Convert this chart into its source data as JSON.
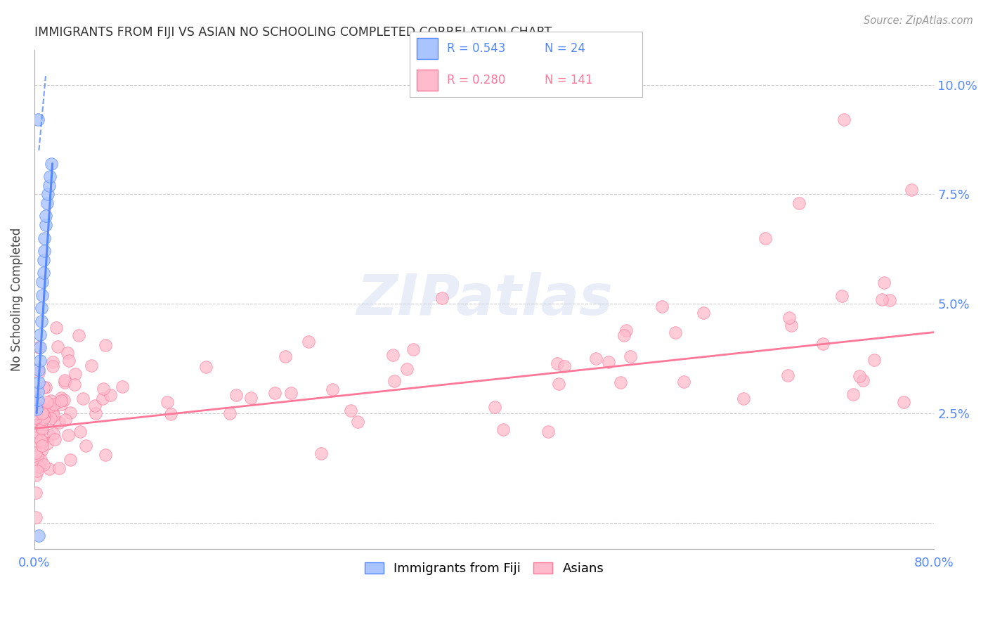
{
  "title": "IMMIGRANTS FROM FIJI VS ASIAN NO SCHOOLING COMPLETED CORRELATION CHART",
  "source": "Source: ZipAtlas.com",
  "ylabel": "No Schooling Completed",
  "fiji_color": "#5588ff",
  "fiji_color_light": "#aac4ff",
  "asian_color": "#ff7799",
  "asian_color_light": "#ffbbcc",
  "background_color": "#ffffff",
  "grid_color": "#cccccc",
  "title_color": "#333333",
  "axis_label_color": "#5588ff",
  "xlim": [
    0.0,
    0.8
  ],
  "ylim": [
    -0.006,
    0.108
  ],
  "yticks": [
    0.0,
    0.025,
    0.05,
    0.075,
    0.1
  ],
  "ytick_labels_right": [
    "",
    "2.5%",
    "5.0%",
    "7.5%",
    "10.0%"
  ],
  "watermark_color": "#ccd8f0"
}
